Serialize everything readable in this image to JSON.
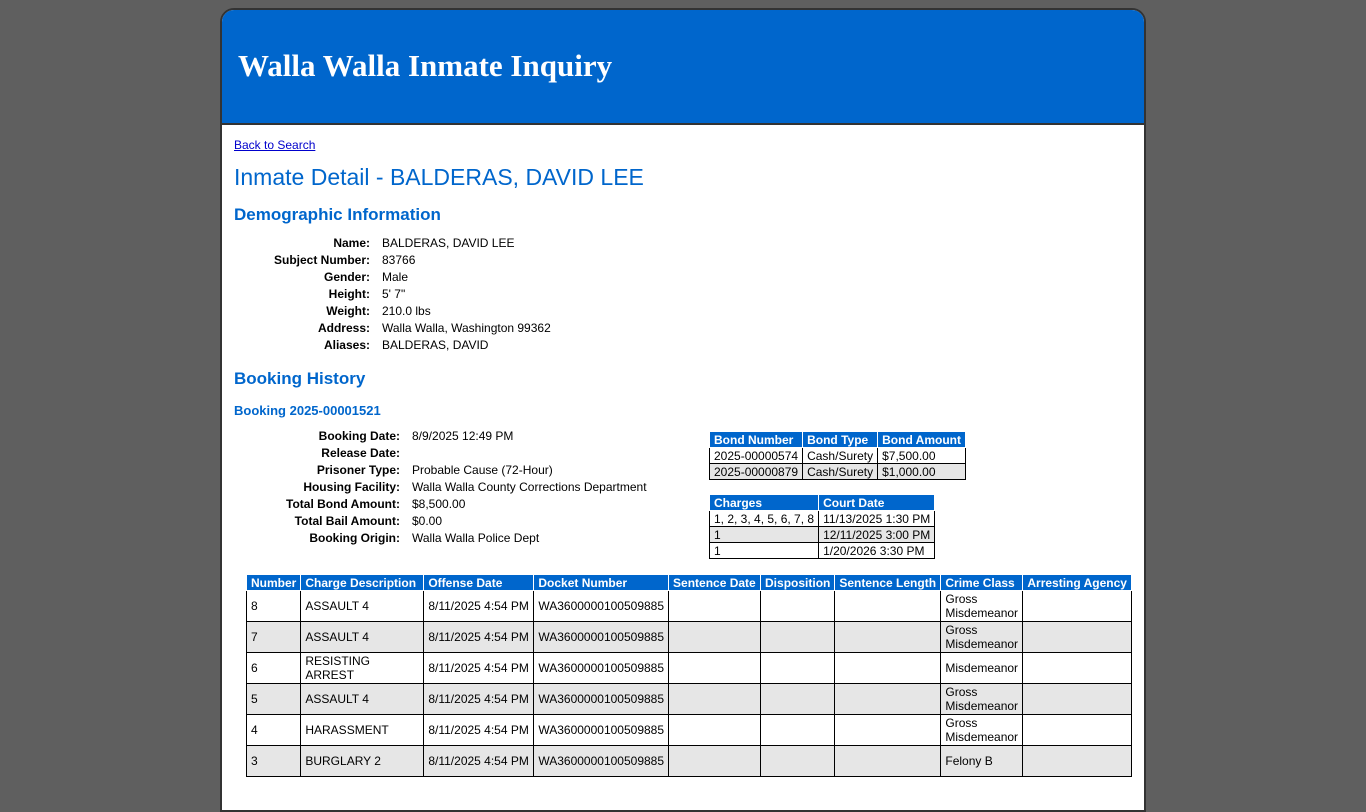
{
  "header": {
    "title": "Walla Walla Inmate Inquiry"
  },
  "nav": {
    "back_label": "Back to Search"
  },
  "page_title": "Inmate Detail - BALDERAS, DAVID LEE",
  "demographics": {
    "heading": "Demographic Information",
    "fields": [
      {
        "label": "Name:",
        "value": "BALDERAS, DAVID LEE"
      },
      {
        "label": "Subject Number:",
        "value": "83766"
      },
      {
        "label": "Gender:",
        "value": "Male"
      },
      {
        "label": "Height:",
        "value": "5' 7\""
      },
      {
        "label": "Weight:",
        "value": "210.0 lbs"
      },
      {
        "label": "Address:",
        "value": "Walla Walla, Washington 99362"
      },
      {
        "label": "Aliases:",
        "value": "BALDERAS, DAVID"
      }
    ]
  },
  "booking_history": {
    "heading": "Booking History",
    "booking": {
      "heading": "Booking 2025-00001521",
      "fields": [
        {
          "label": "Booking Date:",
          "value": "8/9/2025 12:49 PM"
        },
        {
          "label": "Release Date:",
          "value": ""
        },
        {
          "label": "Prisoner Type:",
          "value": "Probable Cause (72-Hour)"
        },
        {
          "label": "Housing Facility:",
          "value": "Walla Walla County Corrections Department"
        },
        {
          "label": "Total Bond Amount:",
          "value": "$8,500.00"
        },
        {
          "label": "Total Bail Amount:",
          "value": "$0.00"
        },
        {
          "label": "Booking Origin:",
          "value": "Walla Walla Police Dept"
        }
      ],
      "bonds": {
        "headers": [
          "Bond Number",
          "Bond Type",
          "Bond Amount"
        ],
        "rows": [
          [
            "2025-00000574",
            "Cash/Surety",
            "$7,500.00"
          ],
          [
            "2025-00000879",
            "Cash/Surety",
            "$1,000.00"
          ]
        ]
      },
      "court_dates": {
        "headers": [
          "Charges",
          "Court Date"
        ],
        "rows": [
          [
            "1, 2, 3, 4, 5, 6, 7, 8",
            "11/13/2025 1:30 PM"
          ],
          [
            "1",
            "12/11/2025 3:00 PM"
          ],
          [
            "1",
            "1/20/2026 3:30 PM"
          ]
        ]
      },
      "charges": {
        "headers": [
          "Number",
          "Charge Description",
          "Offense Date",
          "Docket Number",
          "Sentence Date",
          "Disposition",
          "Sentence Length",
          "Crime Class",
          "Arresting Agency"
        ],
        "rows": [
          [
            "8",
            "ASSAULT 4",
            "8/11/2025 4:54 PM",
            "WA3600000100509885",
            "",
            "",
            "",
            "Gross Misdemeanor",
            ""
          ],
          [
            "7",
            "ASSAULT 4",
            "8/11/2025 4:54 PM",
            "WA3600000100509885",
            "",
            "",
            "",
            "Gross Misdemeanor",
            ""
          ],
          [
            "6",
            "RESISTING ARREST",
            "8/11/2025 4:54 PM",
            "WA3600000100509885",
            "",
            "",
            "",
            "Misdemeanor",
            ""
          ],
          [
            "5",
            "ASSAULT 4",
            "8/11/2025 4:54 PM",
            "WA3600000100509885",
            "",
            "",
            "",
            "Gross Misdemeanor",
            ""
          ],
          [
            "4",
            "HARASSMENT",
            "8/11/2025 4:54 PM",
            "WA3600000100509885",
            "",
            "",
            "",
            "Gross Misdemeanor",
            ""
          ],
          [
            "3",
            "BURGLARY 2",
            "8/11/2025 4:54 PM",
            "WA3600000100509885",
            "",
            "",
            "",
            "Felony B",
            ""
          ]
        ]
      }
    }
  },
  "colors": {
    "brand": "#0066cc",
    "background": "#5f5f5f",
    "alt_row": "#e6e6e6"
  }
}
